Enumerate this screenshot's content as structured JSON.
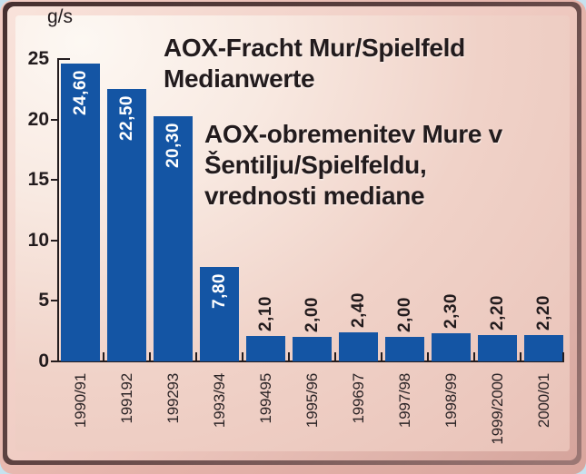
{
  "colors": {
    "page_background": "#c6e2ef",
    "frame_border_dark": "#46302f",
    "frame_pink": "#eec8bf",
    "panel_light": "#fdf8f3",
    "panel_dark": "#e9c2b8",
    "bar_blue": "#1455a4",
    "text_dark": "#221b1d",
    "value_label_inside": "#ffffff"
  },
  "header": {
    "title_de": [
      "AOX-Fracht Mur/Spielfeld",
      "Medianwerte"
    ],
    "title_sl": [
      "AOX-obremenitev Mure v",
      "Šentilju/Spielfeldu,",
      "vrednosti mediane"
    ]
  },
  "chart_data": {
    "type": "bar",
    "title": "AOX-Fracht Mur/Spielfeld Medianwerte",
    "subtitle": "AOX-obremenitev Mure v Šentilju/Spielfeldu, vrednosti mediane",
    "unit_label": "g/s",
    "xlabel": "",
    "ylabel": "g/s",
    "categories": [
      "1990/91",
      "199192",
      "199293",
      "1993/94",
      "199495",
      "1995/96",
      "199697",
      "1997/98",
      "1998/99",
      "1999/2000",
      "2000/01"
    ],
    "values": [
      24.6,
      22.5,
      20.3,
      7.8,
      2.1,
      2.0,
      2.4,
      2.0,
      2.3,
      2.2,
      2.2
    ],
    "value_labels": [
      "24,60",
      "22,50",
      "20,30",
      "7,80",
      "2,10",
      "2,00",
      "2,40",
      "2,00",
      "2,30",
      "2,20",
      "2,20"
    ],
    "ylim": [
      0,
      25
    ],
    "yticks": [
      0,
      5,
      10,
      15,
      20,
      25
    ],
    "bar_color": "#1455a4",
    "grid": false,
    "legend": "none",
    "label_rotation_deg": -90,
    "value_label_placement": "white inside bar when tall, dark above bar when short"
  }
}
